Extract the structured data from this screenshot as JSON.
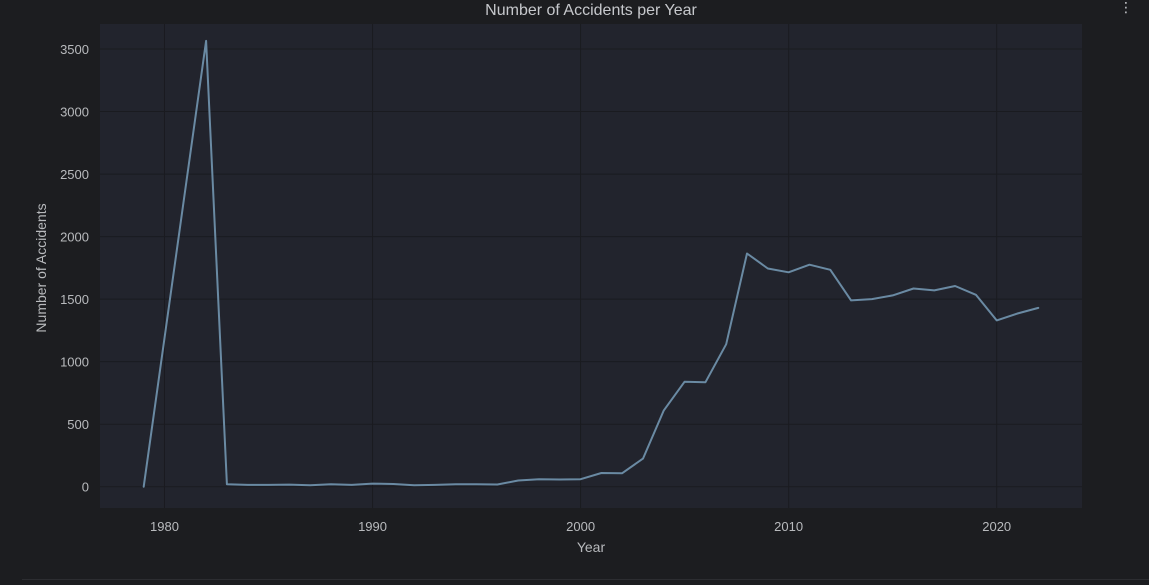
{
  "toolbar": {
    "more_icon": "vertical-ellipsis-icon",
    "more_glyph": "⋮"
  },
  "colors": {
    "background": "#1c1d20",
    "plot_background": "#22242d",
    "grid": "#1a1b20",
    "line": "#6a8aa3",
    "text": "#b8babd",
    "title": "#c6c8cc"
  },
  "chart_data": {
    "type": "line",
    "title": "Number of Accidents per Year",
    "xlabel": "Year",
    "ylabel": "Number of Accidents",
    "xlim": [
      1976.9,
      2024.1
    ],
    "ylim": [
      -170,
      3700
    ],
    "xticks": [
      1980,
      1990,
      2000,
      2010,
      2020
    ],
    "yticks": [
      0,
      500,
      1000,
      1500,
      2000,
      2500,
      3000,
      3500
    ],
    "grid": true,
    "legend": "none",
    "series": [
      {
        "x": [
          1979,
          1982,
          1983,
          1984,
          1985,
          1986,
          1987,
          1988,
          1989,
          1990,
          1991,
          1992,
          1993,
          1994,
          1995,
          1996,
          1997,
          1998,
          1999,
          2000,
          2001,
          2002,
          2003,
          2004,
          2005,
          2006,
          2007,
          2008,
          2009,
          2010,
          2011,
          2012,
          2013,
          2014,
          2015,
          2016,
          2017,
          2018,
          2019,
          2020,
          2021,
          2022
        ],
        "values": [
          0,
          3565,
          20,
          15,
          15,
          17,
          12,
          20,
          15,
          25,
          22,
          12,
          15,
          20,
          20,
          18,
          50,
          60,
          58,
          60,
          110,
          108,
          225,
          610,
          840,
          835,
          1140,
          1865,
          1745,
          1715,
          1775,
          1735,
          1490,
          1500,
          1530,
          1585,
          1570,
          1605,
          1535,
          1330,
          1385,
          1430
        ]
      }
    ]
  }
}
